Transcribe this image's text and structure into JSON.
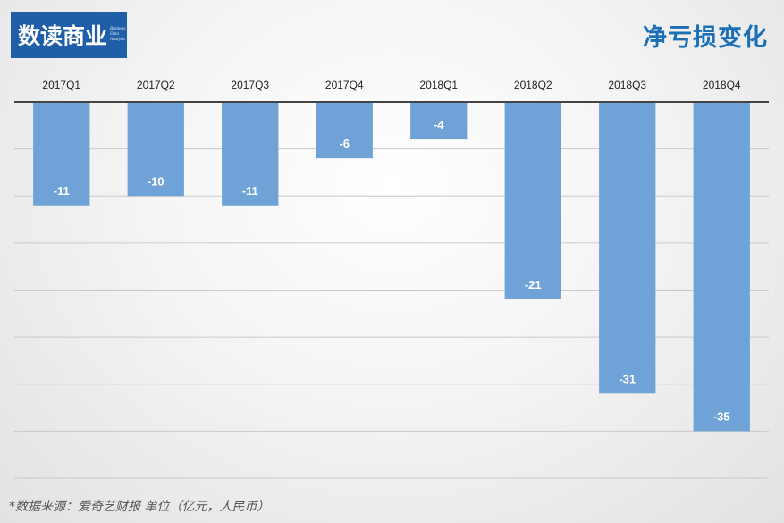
{
  "header": {
    "logo_text": "数读商业",
    "logo_subtext": [
      "Business",
      "Data",
      "Analysis"
    ],
    "title": "净亏损变化"
  },
  "footer": {
    "source": "*数据来源：爱奇艺财报    单位（亿元，人民币）"
  },
  "colors": {
    "bar": "#6fa3d8",
    "title": "#1b6fb5",
    "logo_bg": "#1f5fa8"
  },
  "chart_data": {
    "type": "bar",
    "categories": [
      "2017Q1",
      "2017Q2",
      "2017Q3",
      "2017Q4",
      "2018Q1",
      "2018Q2",
      "2018Q3",
      "2018Q4"
    ],
    "values": [
      -11,
      -10,
      -11,
      -6,
      -4,
      -21,
      -31,
      -35
    ],
    "data_labels": [
      "-11",
      "-10",
      "-11",
      "-6",
      "-4",
      "-21",
      "-31",
      "-35"
    ],
    "title": "净亏损变化",
    "xlabel": "",
    "ylabel": "",
    "ylim": [
      -40,
      0
    ],
    "grid": true,
    "legend": "none",
    "x_axis_position": "top"
  }
}
